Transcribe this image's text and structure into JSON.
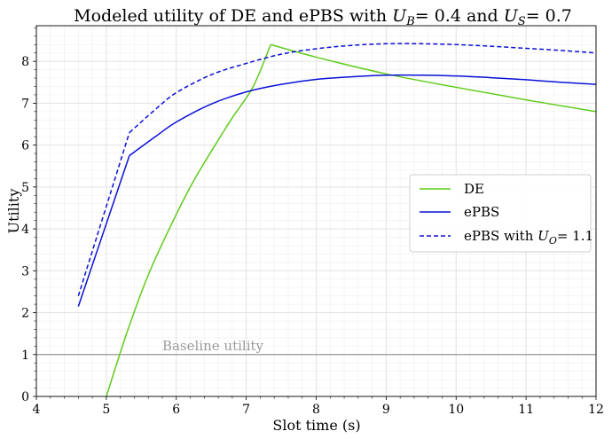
{
  "chart_data": {
    "type": "line",
    "title": "Modeled utility of DE and ePBS with",
    "title_math": {
      "ub_symbol": "U",
      "ub_sub": "B",
      "ub_value": "= 0.4",
      "joiner": "and",
      "us_symbol": "U",
      "us_sub": "S",
      "us_value": "= 0.7"
    },
    "xlabel": "Slot time (s)",
    "ylabel": "Utility",
    "xlim": [
      4,
      12
    ],
    "ylim": [
      0,
      8.85
    ],
    "xticks": [
      4,
      5,
      6,
      7,
      8,
      9,
      10,
      11,
      12
    ],
    "yticks": [
      0,
      1,
      2,
      3,
      4,
      5,
      6,
      7,
      8
    ],
    "grid": true,
    "minor_grid": true,
    "legend_position": "center-right",
    "baseline": {
      "label": "Baseline utility",
      "value": 1,
      "color": "#999999"
    },
    "series": [
      {
        "name": "DE",
        "color": "#5fcb1a",
        "dash": "solid",
        "points": [
          [
            5.0,
            0.0
          ],
          [
            5.3,
            1.55
          ],
          [
            5.6,
            2.9
          ],
          [
            5.9,
            4.0
          ],
          [
            6.2,
            5.0
          ],
          [
            6.5,
            5.85
          ],
          [
            6.8,
            6.65
          ],
          [
            7.1,
            7.4
          ],
          [
            7.35,
            8.4
          ],
          [
            8.0,
            8.1
          ],
          [
            9.0,
            7.7
          ],
          [
            10.0,
            7.38
          ],
          [
            11.0,
            7.08
          ],
          [
            12.0,
            6.8
          ]
        ]
      },
      {
        "name": "ePBS",
        "color": "#0a10d8",
        "dash": "solid",
        "points": [
          [
            4.6,
            2.15
          ],
          [
            5.33,
            5.75
          ],
          [
            5.7,
            6.2
          ],
          [
            6.0,
            6.55
          ],
          [
            6.5,
            6.98
          ],
          [
            7.0,
            7.27
          ],
          [
            7.5,
            7.45
          ],
          [
            8.0,
            7.57
          ],
          [
            8.5,
            7.63
          ],
          [
            9.0,
            7.67
          ],
          [
            9.5,
            7.67
          ],
          [
            10.0,
            7.65
          ],
          [
            10.5,
            7.61
          ],
          [
            11.0,
            7.56
          ],
          [
            11.5,
            7.5
          ],
          [
            12.0,
            7.45
          ]
        ]
      },
      {
        "name": "ePBS with",
        "name_math": {
          "symbol": "U",
          "sub": "O",
          "value": "= 1.1"
        },
        "color": "#0a10d8",
        "dash": "dashed",
        "points": [
          [
            4.6,
            2.4
          ],
          [
            5.33,
            6.3
          ],
          [
            5.7,
            6.85
          ],
          [
            6.0,
            7.25
          ],
          [
            6.5,
            7.68
          ],
          [
            7.0,
            7.95
          ],
          [
            7.5,
            8.17
          ],
          [
            8.0,
            8.3
          ],
          [
            8.5,
            8.38
          ],
          [
            9.0,
            8.42
          ],
          [
            9.5,
            8.42
          ],
          [
            10.0,
            8.4
          ],
          [
            10.5,
            8.36
          ],
          [
            11.0,
            8.31
          ],
          [
            11.5,
            8.26
          ],
          [
            12.0,
            8.2
          ]
        ]
      }
    ]
  }
}
